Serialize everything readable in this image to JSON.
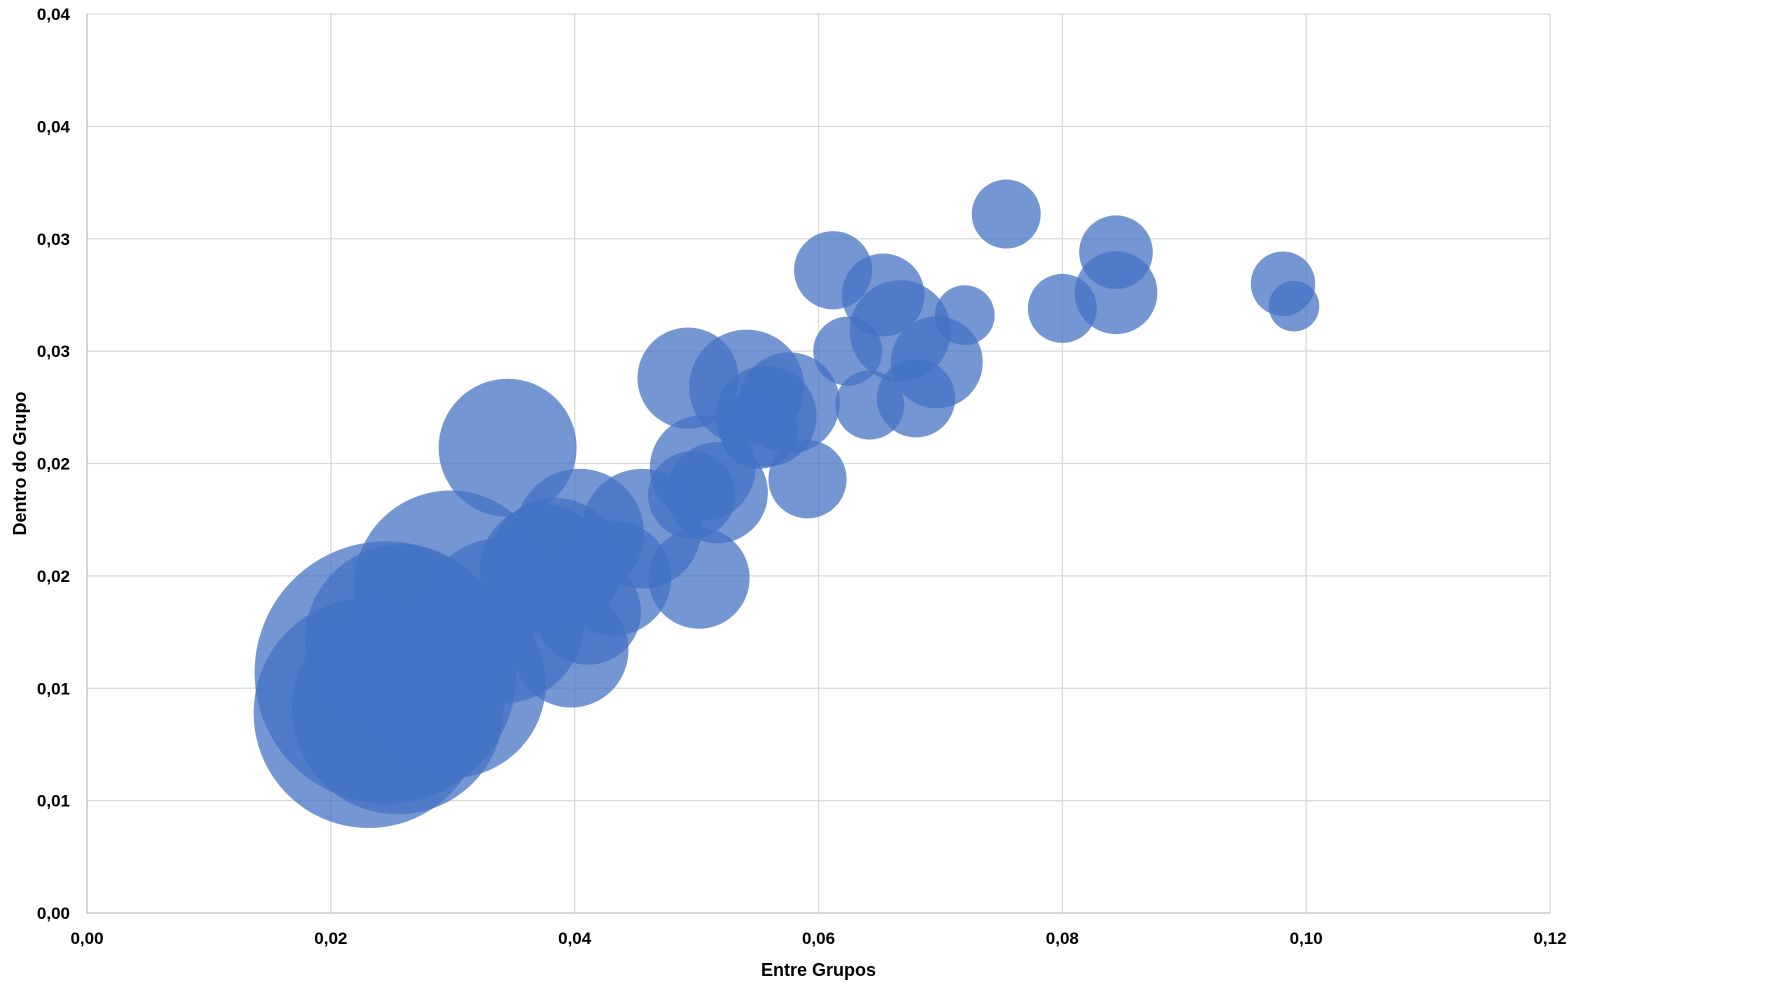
{
  "chart_data": {
    "type": "scatter",
    "title": "",
    "xlabel": "Entre Grupos",
    "ylabel": "Dentro do Grupo",
    "xlim": [
      0,
      0.12
    ],
    "ylim": [
      0,
      0.04
    ],
    "x_ticks": [
      0.0,
      0.02,
      0.04,
      0.06,
      0.08,
      0.1,
      0.12
    ],
    "x_tick_labels": [
      "0,00",
      "0,02",
      "0,04",
      "0,06",
      "0,08",
      "0,10",
      "0,12"
    ],
    "y_ticks": [
      0.0,
      0.005,
      0.01,
      0.015,
      0.02,
      0.025,
      0.03,
      0.035,
      0.04
    ],
    "y_tick_labels": [
      "0,00",
      "0,01",
      "0,01",
      "0,02",
      "0,02",
      "0,03",
      "0,03",
      "0,04",
      "0,04"
    ],
    "grid": true,
    "legend": "none",
    "series": [
      {
        "color": "#4472c4",
        "points": [
          {
            "x": 0.0231,
            "y": 0.0089,
            "size": 50
          },
          {
            "x": 0.0245,
            "y": 0.0107,
            "size": 57
          },
          {
            "x": 0.0255,
            "y": 0.0091,
            "size": 46
          },
          {
            "x": 0.0258,
            "y": 0.0121,
            "size": 42
          },
          {
            "x": 0.0299,
            "y": 0.0102,
            "size": 41
          },
          {
            "x": 0.0298,
            "y": 0.0145,
            "size": 42
          },
          {
            "x": 0.034,
            "y": 0.013,
            "size": 36
          },
          {
            "x": 0.0345,
            "y": 0.0207,
            "size": 30
          },
          {
            "x": 0.0375,
            "y": 0.0153,
            "size": 28
          },
          {
            "x": 0.0384,
            "y": 0.0155,
            "size": 29
          },
          {
            "x": 0.0397,
            "y": 0.0117,
            "size": 25
          },
          {
            "x": 0.0411,
            "y": 0.0134,
            "size": 23
          },
          {
            "x": 0.0404,
            "y": 0.0169,
            "size": 28
          },
          {
            "x": 0.0432,
            "y": 0.0149,
            "size": 25
          },
          {
            "x": 0.0455,
            "y": 0.0171,
            "size": 26
          },
          {
            "x": 0.0493,
            "y": 0.0238,
            "size": 22
          },
          {
            "x": 0.0502,
            "y": 0.0149,
            "size": 22
          },
          {
            "x": 0.0496,
            "y": 0.0186,
            "size": 19
          },
          {
            "x": 0.0505,
            "y": 0.0198,
            "size": 23
          },
          {
            "x": 0.0517,
            "y": 0.0187,
            "size": 22
          },
          {
            "x": 0.0541,
            "y": 0.0234,
            "size": 25
          },
          {
            "x": 0.0557,
            "y": 0.0221,
            "size": 22
          },
          {
            "x": 0.0551,
            "y": 0.0215,
            "size": 17
          },
          {
            "x": 0.0576,
            "y": 0.0227,
            "size": 22
          },
          {
            "x": 0.0591,
            "y": 0.0193,
            "size": 17
          },
          {
            "x": 0.0612,
            "y": 0.0286,
            "size": 17
          },
          {
            "x": 0.0624,
            "y": 0.025,
            "size": 15
          },
          {
            "x": 0.0642,
            "y": 0.0226,
            "size": 15
          },
          {
            "x": 0.0653,
            "y": 0.0275,
            "size": 18
          },
          {
            "x": 0.0667,
            "y": 0.0259,
            "size": 22
          },
          {
            "x": 0.068,
            "y": 0.0229,
            "size": 17
          },
          {
            "x": 0.0697,
            "y": 0.0245,
            "size": 20
          },
          {
            "x": 0.072,
            "y": 0.0266,
            "size": 13
          },
          {
            "x": 0.0754,
            "y": 0.0311,
            "size": 15
          },
          {
            "x": 0.08,
            "y": 0.0269,
            "size": 15
          },
          {
            "x": 0.0844,
            "y": 0.0294,
            "size": 16
          },
          {
            "x": 0.0844,
            "y": 0.0276,
            "size": 18
          },
          {
            "x": 0.0981,
            "y": 0.028,
            "size": 14
          },
          {
            "x": 0.099,
            "y": 0.027,
            "size": 11
          }
        ]
      }
    ]
  }
}
